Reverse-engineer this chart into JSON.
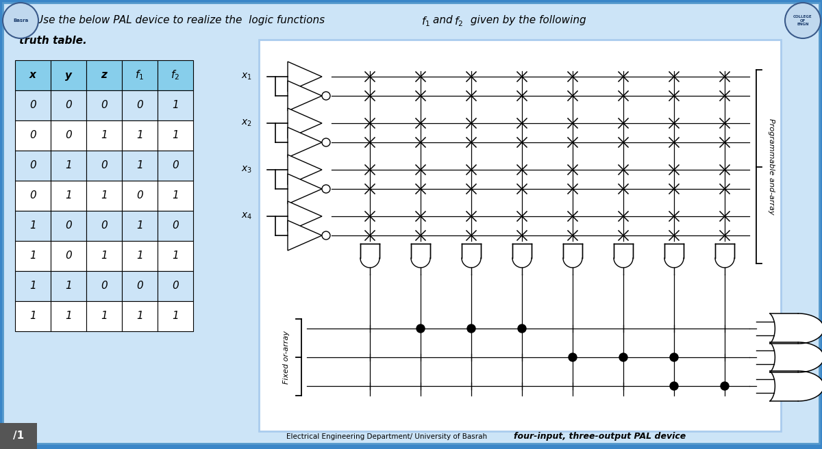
{
  "bg_color": "#3a86c8",
  "panel_color": "#cce4f7",
  "diagram_bg": "#ffffff",
  "table_header_bg": "#87ceeb",
  "table_row_even": "#cce4f7",
  "table_row_odd": "#ffffff",
  "truth_table": {
    "headers": [
      "x",
      "y",
      "z",
      "f1",
      "f2"
    ],
    "rows": [
      [
        0,
        0,
        0,
        0,
        1
      ],
      [
        0,
        0,
        1,
        1,
        1
      ],
      [
        0,
        1,
        0,
        1,
        0
      ],
      [
        0,
        1,
        1,
        0,
        1
      ],
      [
        1,
        0,
        0,
        1,
        0
      ],
      [
        1,
        0,
        1,
        1,
        1
      ],
      [
        1,
        1,
        0,
        0,
        0
      ],
      [
        1,
        1,
        1,
        1,
        1
      ]
    ]
  },
  "num_and_gates": 8,
  "f1_dot_cols": [
    1,
    2,
    3
  ],
  "f2_dot_cols": [
    4,
    5,
    6
  ],
  "f3_dot_cols": [
    6,
    7
  ],
  "footer_text": "Electrical Engineering Department/ University of Basrah",
  "footer_bold": "four-input, three-output PAL device",
  "label_prog_and": "Programmable and-array",
  "label_fixed_or": "Fixed or-array",
  "slide_label": "/1"
}
